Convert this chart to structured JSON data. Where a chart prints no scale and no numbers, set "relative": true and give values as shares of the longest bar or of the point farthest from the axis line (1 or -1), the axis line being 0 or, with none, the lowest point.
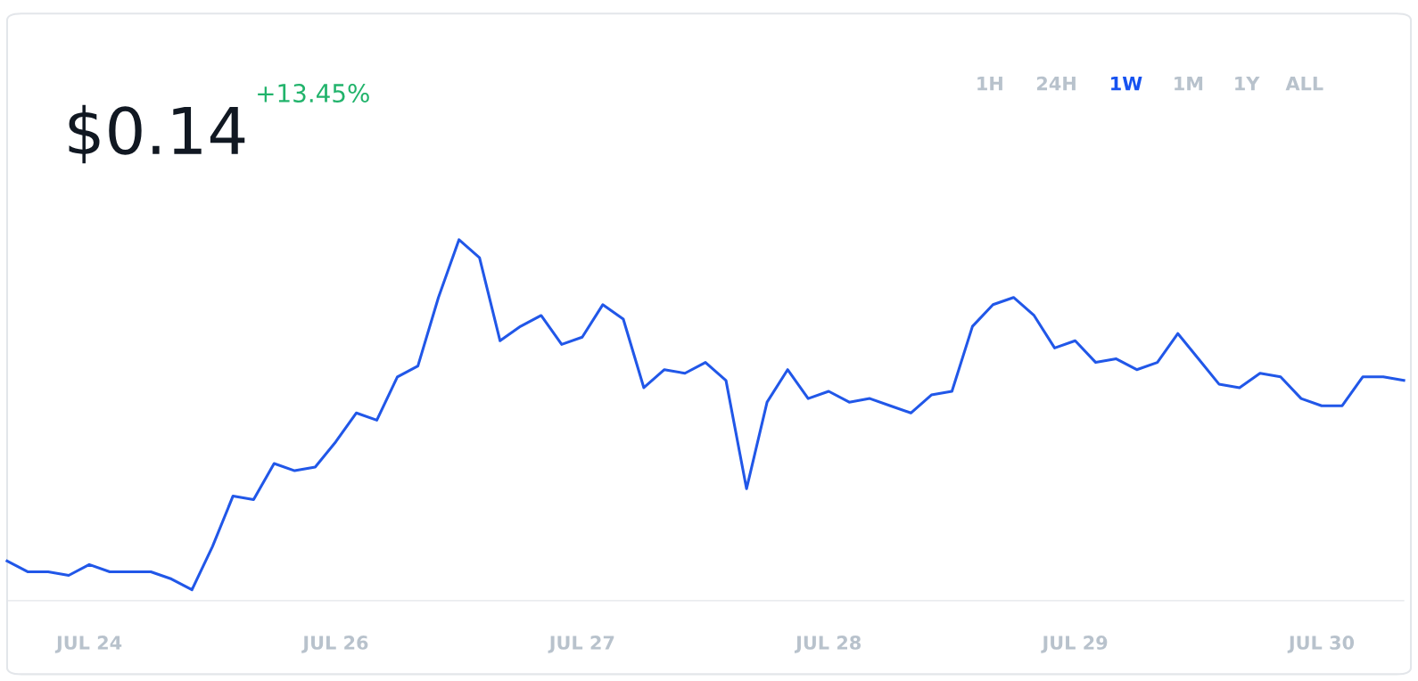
{
  "chart_data": {
    "type": "line",
    "title": "$0.14",
    "subtitle": "+13.45%",
    "annotations": [
      "1H",
      "24H",
      "1W",
      "1M",
      "1Y",
      "ALL"
    ],
    "relative": true,
    "categories": [
      null,
      null,
      null,
      null,
      "JUL 24",
      null,
      null,
      null,
      null,
      null,
      null,
      null,
      null,
      null,
      null,
      null,
      "JUL 26",
      null,
      null,
      null,
      null,
      null,
      null,
      null,
      null,
      null,
      null,
      null,
      "JUL 27",
      null,
      null,
      null,
      null,
      null,
      null,
      null,
      null,
      null,
      null,
      null,
      "JUL 28",
      null,
      null,
      null,
      null,
      null,
      null,
      null,
      null,
      null,
      null,
      null,
      "JUL 29",
      null,
      null,
      null,
      null,
      null,
      null,
      null,
      null,
      null,
      null,
      null,
      "JUL 30",
      null,
      null,
      null,
      null
    ],
    "series": [
      {
        "color": "#2157e8",
        "values": [
          0.11,
          0.08,
          0.08,
          0.07,
          0.1,
          0.08,
          0.08,
          0.08,
          0.06,
          0.03,
          0.15,
          0.29,
          0.28,
          0.38,
          0.36,
          0.37,
          0.44,
          0.52,
          0.5,
          0.62,
          0.65,
          0.84,
          1,
          0.95,
          0.72,
          0.76,
          0.79,
          0.71,
          0.73,
          0.82,
          0.78,
          0.59,
          0.64,
          0.63,
          0.66,
          0.61,
          0.31,
          0.55,
          0.64,
          0.56,
          0.58,
          0.55,
          0.56,
          0.54,
          0.52,
          0.57,
          0.58,
          0.76,
          0.82,
          0.84,
          0.79,
          0.7,
          0.72,
          0.66,
          0.67,
          0.64,
          0.66,
          0.74,
          0.67,
          0.6,
          0.59,
          0.63,
          0.62,
          0.56,
          0.54,
          0.54,
          0.62,
          0.62,
          0.61
        ]
      }
    ],
    "grid": false,
    "legend": false,
    "marker": "none",
    "line_style": "solid"
  }
}
